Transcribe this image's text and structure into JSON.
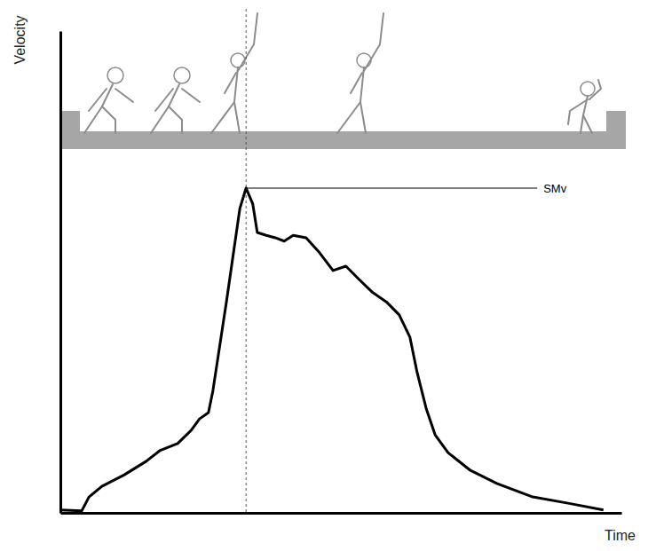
{
  "chart_data": {
    "type": "line",
    "x_label": "Time",
    "y_label": "Velocity",
    "color": "#000000",
    "x": [
      0,
      3.8,
      5.1,
      7.4,
      11.4,
      15.3,
      17.7,
      20.9,
      23.3,
      24.8,
      26.4,
      27.2,
      29.6,
      32.0,
      33.1,
      34.3,
      35.1,
      36.7,
      38.3,
      39.9,
      41.5,
      43.8,
      46.2,
      48.6,
      50.9,
      53.3,
      55.7,
      58.1,
      60.4,
      62.3,
      63.6,
      65.2,
      66.8,
      69.1,
      73.1,
      77.8,
      84.2,
      90.5,
      96.8
    ],
    "values": [
      0.6,
      0.4,
      3.3,
      5.5,
      7.9,
      10.7,
      12.9,
      14.4,
      17.1,
      19.5,
      20.8,
      25.4,
      43.8,
      63.2,
      67.4,
      64.1,
      58.2,
      57.6,
      57.1,
      56.4,
      57.6,
      57.1,
      54.0,
      50.3,
      51.2,
      48.4,
      45.7,
      43.8,
      41.1,
      36.5,
      29.1,
      21.7,
      16.2,
      12.5,
      8.8,
      6.1,
      3.3,
      2.0,
      0.6
    ],
    "xlim": [
      0,
      100
    ],
    "ylim": [
      0,
      100
    ],
    "tick_labels": false,
    "annotations": [
      {
        "text": "SMv",
        "x": 33.1,
        "y": 67.4
      }
    ]
  }
}
